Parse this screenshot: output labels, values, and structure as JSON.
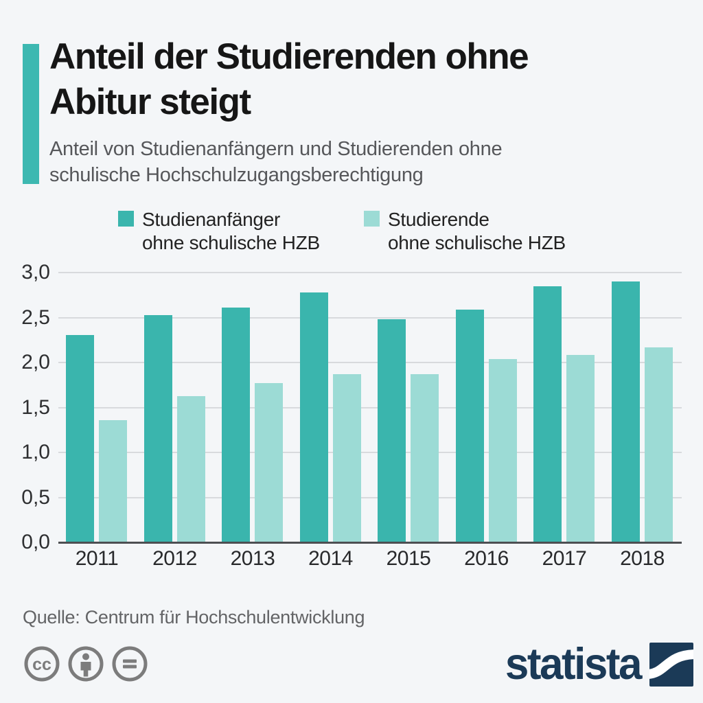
{
  "header": {
    "title": "Anteil der Studierenden ohne Abitur steigt",
    "subtitle": "Anteil von Studienanfängern und Studierenden ohne schulische Hochschulzugangsberechtigung"
  },
  "legend": [
    {
      "line1": "Studienanfänger",
      "line2": "ohne schulische HZB",
      "color": "#3ab5ad"
    },
    {
      "line1": "Studierende",
      "line2": "ohne schulische HZB",
      "color": "#9cdbd5"
    }
  ],
  "chart_data": {
    "type": "bar",
    "title": "Anteil der Studierenden ohne Abitur steigt",
    "subtitle": "Anteil von Studienanfängern und Studierenden ohne schulische Hochschulzugangsberechtigung",
    "categories": [
      "2011",
      "2012",
      "2013",
      "2014",
      "2015",
      "2016",
      "2017",
      "2018"
    ],
    "series": [
      {
        "name": "Studienanfänger ohne schulische HZB",
        "color": "#3ab5ad",
        "values": [
          2.3,
          2.52,
          2.6,
          2.77,
          2.47,
          2.58,
          2.84,
          2.89
        ]
      },
      {
        "name": "Studierende ohne schulische HZB",
        "color": "#9cdbd5",
        "values": [
          1.35,
          1.62,
          1.76,
          1.86,
          1.86,
          2.03,
          2.08,
          2.16
        ]
      }
    ],
    "xlabel": "",
    "ylabel": "",
    "ylim": [
      0,
      3
    ],
    "grid": true,
    "legend_position": "top",
    "yticks": [
      {
        "label": "3,0",
        "value": 3.0
      },
      {
        "label": "2,5",
        "value": 2.5
      },
      {
        "label": "2,0",
        "value": 2.0
      },
      {
        "label": "1,5",
        "value": 1.5
      },
      {
        "label": "1,0",
        "value": 1.0
      },
      {
        "label": "0,5",
        "value": 0.5
      },
      {
        "label": "0,0",
        "value": 0.0
      }
    ]
  },
  "footer": {
    "source": "Quelle: Centrum für Hochschulentwicklung",
    "brand": "statista",
    "license_icons": [
      "cc-icon",
      "attribution-icon",
      "no-derivatives-icon"
    ]
  },
  "colors": {
    "background": "#f4f6f8",
    "accent_bar": "#3db8b1",
    "series_dark": "#3ab5ad",
    "series_light": "#9cdbd5",
    "title_text": "#161616",
    "subtitle_text": "#56575a",
    "gridline": "#d8dadd",
    "baseline": "#4d4f52",
    "source_text": "#636466",
    "license_icon": "#7c7c7c",
    "brand_navy": "#1b3a57"
  }
}
